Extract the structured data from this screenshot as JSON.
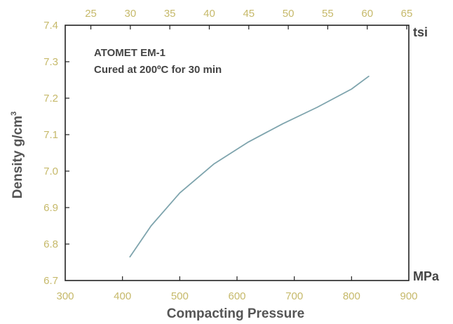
{
  "chart_data": {
    "type": "line",
    "title": "",
    "xlabel": "Compacting Pressure",
    "ylabel": "Density g/cm",
    "ylabel_superscript": "3",
    "x_unit_bottom": "MPa",
    "x_unit_top": "tsi",
    "xlim": [
      300,
      900
    ],
    "ylim": [
      6.7,
      7.4
    ],
    "grid": false,
    "x_ticks_bottom": [
      "300",
      "400",
      "500",
      "600",
      "700",
      "800",
      "900"
    ],
    "x_ticks_top": [
      "25",
      "30",
      "35",
      "40",
      "45",
      "50",
      "55",
      "60",
      "65"
    ],
    "y_ticks": [
      "6.7",
      "6.8",
      "6.9",
      "7.0",
      "7.1",
      "7.2",
      "7.3",
      "7.4"
    ],
    "annotations": [
      "ATOMET EM-1",
      "Cured at 200ºC for 30 min"
    ],
    "colors": {
      "line": "#7ea4ad",
      "tick_labels": "#c6b96a",
      "axis": "#222222"
    },
    "series": [
      {
        "x": [
          413,
          450,
          500,
          560,
          620,
          680,
          740,
          800,
          830
        ],
        "y": [
          6.765,
          6.85,
          6.94,
          7.02,
          7.08,
          7.13,
          7.175,
          7.225,
          7.26
        ]
      }
    ]
  }
}
